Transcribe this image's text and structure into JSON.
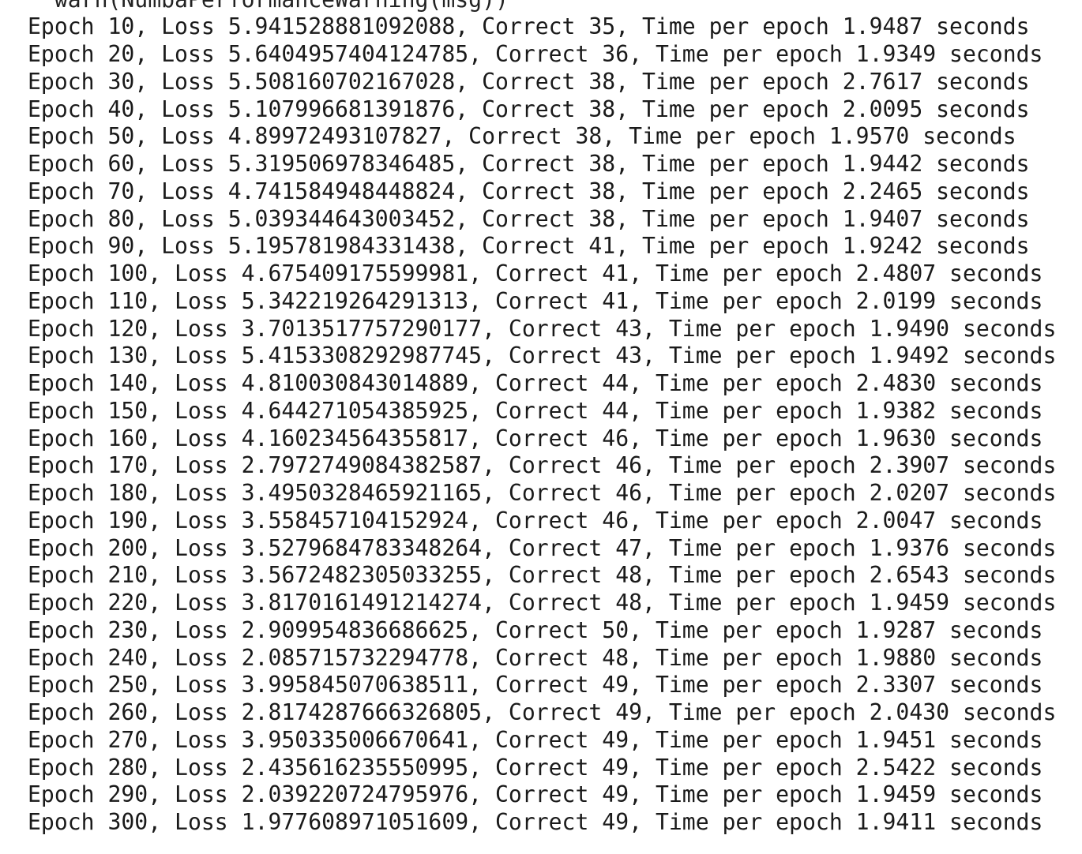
{
  "terminal": {
    "partial_top_line": "  warn(NumbaPerformanceWarning(msg))",
    "lines": [
      "Epoch 10, Loss 5.941528881092088, Correct 35, Time per epoch 1.9487 seconds",
      "Epoch 20, Loss 5.6404957404124785, Correct 36, Time per epoch 1.9349 seconds",
      "Epoch 30, Loss 5.508160702167028, Correct 38, Time per epoch 2.7617 seconds",
      "Epoch 40, Loss 5.107996681391876, Correct 38, Time per epoch 2.0095 seconds",
      "Epoch 50, Loss 4.89972493107827, Correct 38, Time per epoch 1.9570 seconds",
      "Epoch 60, Loss 5.319506978346485, Correct 38, Time per epoch 1.9442 seconds",
      "Epoch 70, Loss 4.741584948448824, Correct 38, Time per epoch 2.2465 seconds",
      "Epoch 80, Loss 5.039344643003452, Correct 38, Time per epoch 1.9407 seconds",
      "Epoch 90, Loss 5.195781984331438, Correct 41, Time per epoch 1.9242 seconds",
      "Epoch 100, Loss 4.675409175599981, Correct 41, Time per epoch 2.4807 seconds",
      "Epoch 110, Loss 5.342219264291313, Correct 41, Time per epoch 2.0199 seconds",
      "Epoch 120, Loss 3.7013517757290177, Correct 43, Time per epoch 1.9490 seconds",
      "Epoch 130, Loss 5.4153308292987745, Correct 43, Time per epoch 1.9492 seconds",
      "Epoch 140, Loss 4.810030843014889, Correct 44, Time per epoch 2.4830 seconds",
      "Epoch 150, Loss 4.644271054385925, Correct 44, Time per epoch 1.9382 seconds",
      "Epoch 160, Loss 4.160234564355817, Correct 46, Time per epoch 1.9630 seconds",
      "Epoch 170, Loss 2.7972749084382587, Correct 46, Time per epoch 2.3907 seconds",
      "Epoch 180, Loss 3.4950328465921165, Correct 46, Time per epoch 2.0207 seconds",
      "Epoch 190, Loss 3.558457104152924, Correct 46, Time per epoch 2.0047 seconds",
      "Epoch 200, Loss 3.5279684783348264, Correct 47, Time per epoch 1.9376 seconds",
      "Epoch 210, Loss 3.5672482305033255, Correct 48, Time per epoch 2.6543 seconds",
      "Epoch 220, Loss 3.8170161491214274, Correct 48, Time per epoch 1.9459 seconds",
      "Epoch 230, Loss 2.909954836686625, Correct 50, Time per epoch 1.9287 seconds",
      "Epoch 240, Loss 2.085715732294778, Correct 48, Time per epoch 1.9880 seconds",
      "Epoch 250, Loss 3.995845070638511, Correct 49, Time per epoch 2.3307 seconds",
      "Epoch 260, Loss 2.8174287666326805, Correct 49, Time per epoch 2.0430 seconds",
      "Epoch 270, Loss 3.950335006670641, Correct 49, Time per epoch 1.9451 seconds",
      "Epoch 280, Loss 2.435616235550995, Correct 49, Time per epoch 2.5422 seconds",
      "Epoch 290, Loss 2.039220724795976, Correct 49, Time per epoch 1.9459 seconds",
      "Epoch 300, Loss 1.977608971051609, Correct 49, Time per epoch 1.9411 seconds"
    ]
  }
}
